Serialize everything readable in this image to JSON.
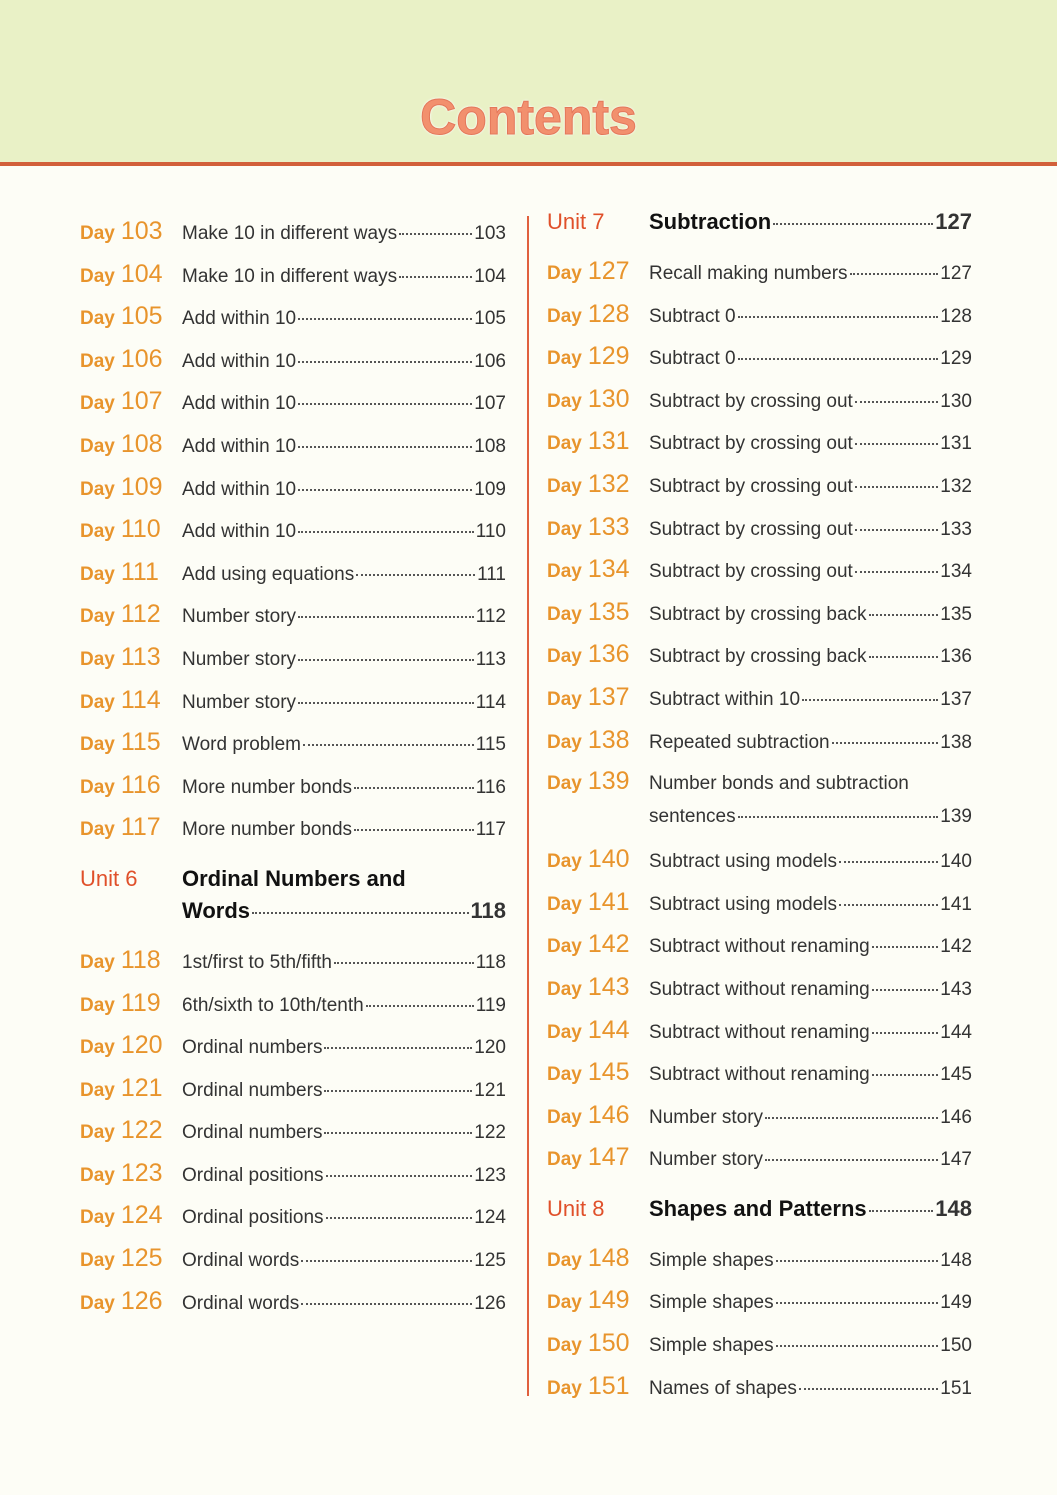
{
  "title": "Contents",
  "left": [
    {
      "label": "Day",
      "num": "103",
      "title": "Make 10 in different ways",
      "page": "103"
    },
    {
      "label": "Day",
      "num": "104",
      "title": "Make 10 in different ways",
      "page": "104"
    },
    {
      "label": "Day",
      "num": "105",
      "title": "Add within 10",
      "page": "105"
    },
    {
      "label": "Day",
      "num": "106",
      "title": "Add within 10",
      "page": "106"
    },
    {
      "label": "Day",
      "num": "107",
      "title": "Add within 10",
      "page": "107"
    },
    {
      "label": "Day",
      "num": "108",
      "title": "Add within 10",
      "page": "108"
    },
    {
      "label": "Day",
      "num": "109",
      "title": "Add within 10",
      "page": "109"
    },
    {
      "label": "Day",
      "num": "110",
      "title": "Add within 10",
      "page": "110"
    },
    {
      "label": "Day",
      "num": "111",
      "title": "Add using equations",
      "page": "111"
    },
    {
      "label": "Day",
      "num": "112",
      "title": "Number story",
      "page": "112"
    },
    {
      "label": "Day",
      "num": "113",
      "title": "Number story",
      "page": "113"
    },
    {
      "label": "Day",
      "num": "114",
      "title": "Number story",
      "page": "114"
    },
    {
      "label": "Day",
      "num": "115",
      "title": "Word problem",
      "page": "115"
    },
    {
      "label": "Day",
      "num": "116",
      "title": "More number bonds",
      "page": "116"
    },
    {
      "label": "Day",
      "num": "117",
      "title": "More number bonds",
      "page": "117"
    },
    {
      "unit": "Unit 6",
      "line1": "Ordinal Numbers and",
      "title": "Words",
      "page": "118"
    },
    {
      "label": "Day",
      "num": "118",
      "title": "1st/first to 5th/fifth",
      "page": "118"
    },
    {
      "label": "Day",
      "num": "119",
      "title": "6th/sixth to 10th/tenth",
      "page": "119"
    },
    {
      "label": "Day",
      "num": "120",
      "title": "Ordinal numbers",
      "page": "120"
    },
    {
      "label": "Day",
      "num": "121",
      "title": "Ordinal numbers",
      "page": "121"
    },
    {
      "label": "Day",
      "num": "122",
      "title": "Ordinal numbers",
      "page": "122"
    },
    {
      "label": "Day",
      "num": "123",
      "title": "Ordinal positions",
      "page": "123"
    },
    {
      "label": "Day",
      "num": "124",
      "title": "Ordinal positions",
      "page": "124"
    },
    {
      "label": "Day",
      "num": "125",
      "title": "Ordinal words",
      "page": "125"
    },
    {
      "label": "Day",
      "num": "126",
      "title": "Ordinal words",
      "page": "126"
    }
  ],
  "right": [
    {
      "unit": "Unit 7",
      "title": "Subtraction",
      "page": "127"
    },
    {
      "label": "Day",
      "num": "127",
      "title": "Recall making numbers",
      "page": "127"
    },
    {
      "label": "Day",
      "num": "128",
      "title": "Subtract 0",
      "page": "128"
    },
    {
      "label": "Day",
      "num": "129",
      "title": "Subtract 0",
      "page": "129"
    },
    {
      "label": "Day",
      "num": "130",
      "title": "Subtract by crossing out",
      "page": "130"
    },
    {
      "label": "Day",
      "num": "131",
      "title": "Subtract by crossing out",
      "page": "131"
    },
    {
      "label": "Day",
      "num": "132",
      "title": "Subtract by crossing out",
      "page": "132"
    },
    {
      "label": "Day",
      "num": "133",
      "title": "Subtract by crossing out",
      "page": "133"
    },
    {
      "label": "Day",
      "num": "134",
      "title": "Subtract by crossing out",
      "page": "134"
    },
    {
      "label": "Day",
      "num": "135",
      "title": "Subtract by crossing back",
      "page": "135"
    },
    {
      "label": "Day",
      "num": "136",
      "title": "Subtract by crossing back",
      "page": "136"
    },
    {
      "label": "Day",
      "num": "137",
      "title": "Subtract within 10",
      "page": "137"
    },
    {
      "label": "Day",
      "num": "138",
      "title": "Repeated subtraction",
      "page": "138"
    },
    {
      "label": "Day",
      "num": "139",
      "line1": "Number bonds and subtraction",
      "title": "sentences",
      "page": "139"
    },
    {
      "label": "Day",
      "num": "140",
      "title": "Subtract using models",
      "page": "140"
    },
    {
      "label": "Day",
      "num": "141",
      "title": "Subtract using models",
      "page": "141"
    },
    {
      "label": "Day",
      "num": "142",
      "title": "Subtract without renaming",
      "page": "142"
    },
    {
      "label": "Day",
      "num": "143",
      "title": "Subtract without renaming",
      "page": "143"
    },
    {
      "label": "Day",
      "num": "144",
      "title": "Subtract without renaming",
      "page": "144"
    },
    {
      "label": "Day",
      "num": "145",
      "title": "Subtract without renaming",
      "page": "145"
    },
    {
      "label": "Day",
      "num": "146",
      "title": "Number story",
      "page": "146"
    },
    {
      "label": "Day",
      "num": "147",
      "title": "Number story",
      "page": "147"
    },
    {
      "unit": "Unit 8",
      "title": "Shapes and Patterns",
      "page": "148"
    },
    {
      "label": "Day",
      "num": "148",
      "title": "Simple shapes",
      "page": "148"
    },
    {
      "label": "Day",
      "num": "149",
      "title": "Simple shapes",
      "page": "149"
    },
    {
      "label": "Day",
      "num": "150",
      "title": "Simple shapes",
      "page": "150"
    },
    {
      "label": "Day",
      "num": "151",
      "title": "Names of shapes",
      "page": "151"
    }
  ],
  "colors": {
    "header_bg": "#e9f1c6",
    "header_rule": "#d2603a",
    "day": "#e8942c",
    "unit": "#e0502a",
    "title": "#f2906e"
  }
}
